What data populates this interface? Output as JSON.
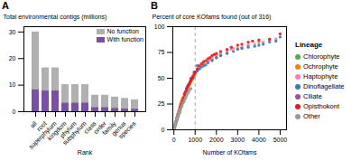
{
  "chart_data": [
    {
      "type": "bar",
      "title": "A",
      "categories": [
        "all",
        "root",
        "superphylum",
        "kingdom",
        "phylum",
        "subphylum",
        "class",
        "order",
        "family",
        "genus",
        "species"
      ],
      "series": [
        {
          "name": "No function",
          "color": "#b0b0b0",
          "values": [
            30.0,
            16.5,
            16.5,
            10.2,
            10.2,
            10.2,
            6.2,
            6.2,
            5.5,
            5.0,
            4.5
          ]
        },
        {
          "name": "With function",
          "color": "#7b4fa6",
          "values": [
            8.2,
            7.8,
            7.8,
            3.2,
            3.2,
            3.2,
            1.5,
            1.5,
            1.2,
            1.0,
            0.9
          ]
        }
      ],
      "stacked": false,
      "xlabel": "Rank",
      "ylabel": "Total environmental contigs (millions)",
      "ylim": [
        0,
        32
      ],
      "yticks": [
        0,
        10,
        20,
        30
      ],
      "legend": "upper right",
      "grid": false
    },
    {
      "type": "scatter",
      "title": "B",
      "series": [
        {
          "name": "Chlorophyte",
          "color": "#4daf4a",
          "x": [
            30,
            50,
            70,
            90,
            110,
            140,
            160,
            200,
            250,
            300,
            350,
            400,
            80,
            130,
            450,
            500
          ],
          "y": [
            2,
            4,
            6,
            5,
            8,
            10,
            12,
            15,
            18,
            22,
            25,
            28,
            7,
            9,
            30,
            32
          ]
        },
        {
          "name": "Ochrophyte",
          "color": "#ff7f00",
          "x": [
            20,
            40,
            60,
            80,
            100,
            120,
            150,
            180,
            200,
            220,
            250,
            280,
            300,
            320,
            350,
            380,
            400,
            430,
            460,
            490,
            520,
            560,
            600,
            650,
            700,
            750,
            800,
            850,
            900,
            950,
            1000,
            1100,
            1200,
            1400,
            1600,
            1800,
            2000,
            2200,
            2500,
            3000,
            3500,
            4000,
            4500
          ],
          "y": [
            2,
            4,
            5,
            7,
            8,
            10,
            12,
            14,
            16,
            18,
            20,
            22,
            24,
            25,
            27,
            28,
            30,
            31,
            32,
            33,
            35,
            36,
            38,
            40,
            42,
            44,
            46,
            48,
            50,
            52,
            54,
            58,
            60,
            63,
            66,
            68,
            70,
            72,
            75,
            79,
            82,
            85,
            87
          ]
        },
        {
          "name": "Haptophyte",
          "color": "#f781bf",
          "x": [
            600,
            800,
            1000,
            1200,
            1400,
            1600,
            1800,
            2000,
            2200,
            2500,
            2800,
            3200,
            3500,
            3800,
            4200,
            4800,
            900,
            1100,
            1700,
            2700
          ],
          "y": [
            40,
            48,
            55,
            60,
            64,
            67,
            70,
            72,
            74,
            77,
            79,
            80,
            82,
            83,
            85,
            88,
            52,
            58,
            68,
            78
          ]
        },
        {
          "name": "Dinoflagellate",
          "color": "#377eb8",
          "x": [
            500,
            700,
            900,
            1000,
            1200,
            1400,
            1600,
            1800,
            2000,
            2200,
            2500,
            2800,
            3000,
            3200,
            3500,
            3800,
            4000,
            4200,
            4500,
            4800,
            5000,
            1100,
            1300,
            1500,
            600,
            800
          ],
          "y": [
            35,
            44,
            50,
            55,
            59,
            62,
            65,
            67,
            70,
            72,
            74,
            76,
            78,
            79,
            80,
            81,
            82,
            83,
            85,
            86,
            90,
            57,
            61,
            63,
            40,
            48
          ]
        },
        {
          "name": "Ciliate",
          "color": "#984ea3",
          "x": [
            200,
            350,
            500,
            650,
            800,
            950,
            1100,
            300,
            450,
            600,
            750,
            50,
            100,
            150
          ],
          "y": [
            15,
            25,
            35,
            42,
            50,
            56,
            62,
            22,
            30,
            38,
            46,
            4,
            8,
            12
          ]
        },
        {
          "name": "Opisthokont",
          "color": "#e41a1c",
          "x": [
            100,
            200,
            300,
            400,
            500,
            600,
            700,
            800,
            900,
            1000,
            1200,
            1400,
            1600,
            1800,
            2000,
            2500,
            3000,
            3500,
            4000,
            4500,
            5000,
            150,
            250,
            350,
            450,
            550,
            650,
            750,
            850,
            950,
            1100,
            1300,
            1500,
            1700,
            1900,
            2200,
            2700,
            3200,
            3700
          ],
          "y": [
            8,
            15,
            22,
            28,
            34,
            40,
            44,
            48,
            52,
            56,
            62,
            66,
            69,
            72,
            74,
            78,
            82,
            85,
            87,
            88,
            93,
            11,
            18,
            25,
            31,
            37,
            42,
            46,
            50,
            54,
            59,
            64,
            67,
            70,
            73,
            76,
            80,
            83,
            86
          ]
        },
        {
          "name": "Other",
          "color": "#999999",
          "x": [
            10,
            20,
            30,
            40,
            50,
            60,
            70,
            80,
            90,
            100,
            120,
            140,
            160,
            180,
            200,
            220,
            250,
            280,
            300,
            320,
            350,
            380,
            400,
            430,
            460,
            490,
            520,
            550,
            600,
            650,
            700,
            750,
            800,
            30,
            55,
            85,
            115,
            145,
            175,
            205,
            235,
            265,
            295
          ],
          "y": [
            1,
            2,
            3,
            3,
            4,
            5,
            5,
            6,
            7,
            8,
            9,
            10,
            11,
            12,
            13,
            14,
            16,
            17,
            19,
            20,
            22,
            23,
            25,
            26,
            27,
            28,
            30,
            31,
            33,
            35,
            37,
            39,
            40,
            2,
            4,
            6,
            8,
            10,
            12,
            14,
            16,
            18,
            20
          ]
        }
      ],
      "vlines": [
        {
          "x": 1000,
          "color": "#aaaaaa",
          "line_style": "dashed"
        }
      ],
      "xlabel": "Number of KOfams",
      "ylabel": "Percent of core KOfams found (out of 316)",
      "xlim": [
        -50,
        5300
      ],
      "xticks": [
        0,
        1000,
        2000,
        3000,
        4000,
        5000
      ],
      "ylim": [
        0,
        100
      ],
      "yticks": [
        0,
        25,
        50,
        75,
        100
      ],
      "legend": "right",
      "legend_title": "Lineage",
      "grid": false
    }
  ]
}
